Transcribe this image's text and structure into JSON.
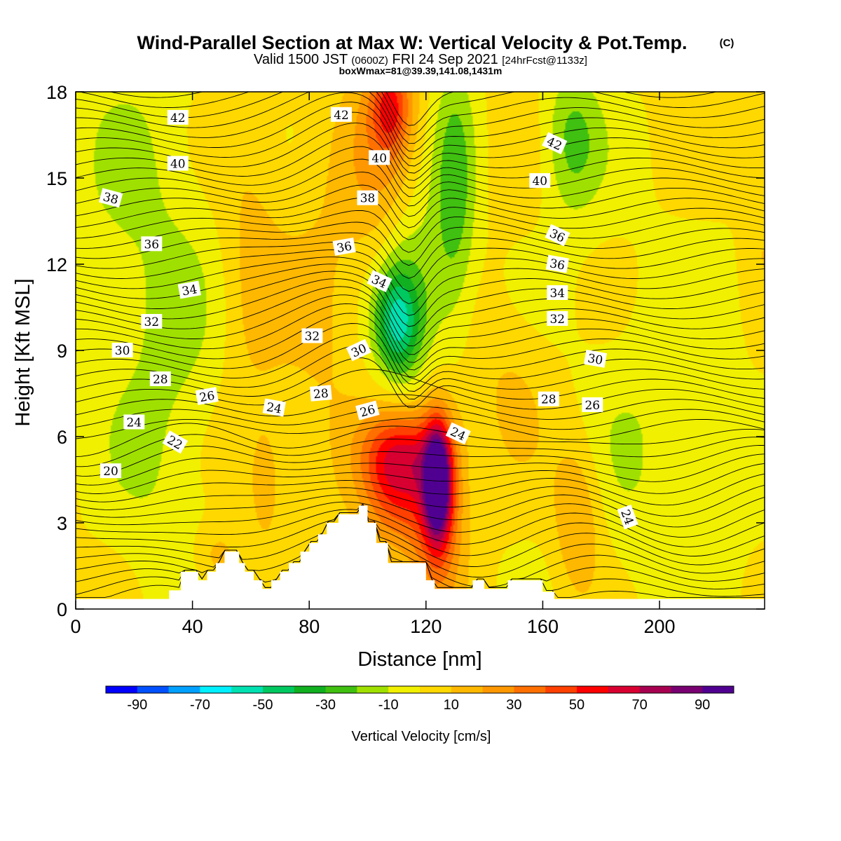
{
  "title": {
    "main": "Wind-Parallel Section at Max W: Vertical Velocity & Pot.Temp.",
    "copyright_mark": "(C)",
    "valid_prefix": "Valid 1500 JST",
    "valid_utc": "(0600Z)",
    "valid_date": "FRI 24 Sep 2021",
    "forecast": "[24hrFcst@1133z]",
    "box_info": "boxWmax=81@39.39,141.08,1431m"
  },
  "chart_data": {
    "type": "heatmap",
    "xlabel": "Distance [nm]",
    "ylabel": "Height [Kft MSL]",
    "xlim": [
      0,
      236
    ],
    "ylim": [
      0,
      18
    ],
    "x_ticks": [
      0,
      40,
      80,
      120,
      160,
      200
    ],
    "y_ticks": [
      0,
      3,
      6,
      9,
      12,
      15,
      18
    ],
    "colorbar": {
      "label": "Vertical Velocity [cm/s]",
      "bounds": [
        -100,
        100
      ],
      "tick_labels": [
        "-90",
        "-70",
        "-50",
        "-30",
        "-10",
        "10",
        "30",
        "50",
        "70",
        "90"
      ],
      "colors": [
        "#0000ff",
        "#0050ff",
        "#00a0ff",
        "#00f0ff",
        "#00e0b0",
        "#00c860",
        "#10b020",
        "#40c010",
        "#a0e000",
        "#f0f000",
        "#ffd800",
        "#ffb800",
        "#ff9800",
        "#ff7000",
        "#ff4000",
        "#ff0000",
        "#d80030",
        "#a80050",
        "#780070",
        "#500090"
      ]
    },
    "theta_contours": [
      {
        "label": "20",
        "x": 12,
        "y": 4.8,
        "angle": 0
      },
      {
        "label": "22",
        "x": 34,
        "y": 5.8,
        "angle": 30
      },
      {
        "label": "24",
        "x": 20,
        "y": 6.5,
        "angle": 0
      },
      {
        "label": "24",
        "x": 68,
        "y": 7.0,
        "angle": 10
      },
      {
        "label": "24",
        "x": 131,
        "y": 6.1,
        "angle": 25
      },
      {
        "label": "24",
        "x": 189,
        "y": 3.2,
        "angle": 70
      },
      {
        "label": "26",
        "x": 45,
        "y": 7.4,
        "angle": -10
      },
      {
        "label": "26",
        "x": 100,
        "y": 6.9,
        "angle": -15
      },
      {
        "label": "26",
        "x": 177,
        "y": 7.1,
        "angle": 0
      },
      {
        "label": "28",
        "x": 29,
        "y": 8.0,
        "angle": 0
      },
      {
        "label": "28",
        "x": 84,
        "y": 7.5,
        "angle": -5
      },
      {
        "label": "28",
        "x": 162,
        "y": 7.3,
        "angle": 0
      },
      {
        "label": "30",
        "x": 16,
        "y": 9.0,
        "angle": 0
      },
      {
        "label": "30",
        "x": 97,
        "y": 9.0,
        "angle": -25
      },
      {
        "label": "30",
        "x": 178,
        "y": 8.7,
        "angle": 10
      },
      {
        "label": "32",
        "x": 26,
        "y": 10.0,
        "angle": 0
      },
      {
        "label": "32",
        "x": 81,
        "y": 9.5,
        "angle": 0
      },
      {
        "label": "32",
        "x": 165,
        "y": 10.1,
        "angle": 0
      },
      {
        "label": "34",
        "x": 39,
        "y": 11.1,
        "angle": -10
      },
      {
        "label": "34",
        "x": 104,
        "y": 11.4,
        "angle": 25
      },
      {
        "label": "34",
        "x": 165,
        "y": 11.0,
        "angle": 0
      },
      {
        "label": "36",
        "x": 26,
        "y": 12.7,
        "angle": 0
      },
      {
        "label": "36",
        "x": 92,
        "y": 12.6,
        "angle": -10
      },
      {
        "label": "36",
        "x": 165,
        "y": 12.0,
        "angle": 10
      },
      {
        "label": "36",
        "x": 165,
        "y": 13.0,
        "angle": 25
      },
      {
        "label": "38",
        "x": 12,
        "y": 14.3,
        "angle": 15
      },
      {
        "label": "38",
        "x": 100,
        "y": 14.3,
        "angle": 0
      },
      {
        "label": "40",
        "x": 35,
        "y": 15.5,
        "angle": 0
      },
      {
        "label": "40",
        "x": 104,
        "y": 15.7,
        "angle": 0
      },
      {
        "label": "40",
        "x": 159,
        "y": 14.9,
        "angle": 0
      },
      {
        "label": "42",
        "x": 35,
        "y": 17.1,
        "angle": 0
      },
      {
        "label": "42",
        "x": 91,
        "y": 17.2,
        "angle": 0
      },
      {
        "label": "42",
        "x": 164,
        "y": 16.2,
        "angle": 25
      }
    ],
    "terrain_kft": {
      "x": [
        0,
        32,
        32,
        36,
        36,
        42,
        42,
        45,
        45,
        48,
        48,
        51,
        51,
        56,
        56,
        58,
        58,
        61,
        61,
        64,
        64,
        67,
        67,
        70,
        70,
        73,
        73,
        77,
        77,
        80,
        80,
        83,
        83,
        86,
        86,
        90,
        90,
        97,
        97,
        100,
        100,
        103,
        103,
        107,
        107,
        120,
        120,
        123,
        123,
        136,
        136,
        140,
        140,
        148,
        148,
        152,
        152,
        160,
        160,
        164,
        164,
        168,
        168,
        236
      ],
      "y": [
        0.35,
        0.35,
        0.65,
        0.65,
        1.3,
        1.3,
        1.0,
        1.0,
        1.3,
        1.3,
        1.6,
        1.6,
        2.0,
        2.0,
        1.6,
        1.6,
        1.3,
        1.3,
        1.0,
        1.0,
        0.7,
        0.7,
        1.0,
        1.0,
        1.3,
        1.3,
        1.6,
        1.6,
        2.0,
        2.0,
        2.3,
        2.3,
        2.6,
        2.6,
        3.0,
        3.0,
        3.3,
        3.3,
        3.6,
        3.6,
        3.0,
        3.0,
        2.3,
        2.3,
        1.6,
        1.6,
        1.0,
        1.0,
        0.7,
        0.7,
        1.0,
        1.0,
        0.7,
        0.7,
        1.0,
        1.0,
        1.0,
        1.0,
        0.6,
        0.6,
        0.35,
        0.35,
        0.35,
        0.35
      ]
    },
    "w_field_cms": [
      {
        "x": 124,
        "y": 4.4,
        "w": 85,
        "sx": 3,
        "sy": 1.3
      },
      {
        "x": 124,
        "y": 4.0,
        "w": 50,
        "sx": 6,
        "sy": 2.3
      },
      {
        "x": 110,
        "y": 4.4,
        "w": 45,
        "sx": 8,
        "sy": 1.6
      },
      {
        "x": 112,
        "y": 5.5,
        "w": 25,
        "sx": 10,
        "sy": 1.0
      },
      {
        "x": 108,
        "y": 17.5,
        "w": 40,
        "sx": 5,
        "sy": 1.2
      },
      {
        "x": 105,
        "y": 15.5,
        "w": 18,
        "sx": 9,
        "sy": 3.0
      },
      {
        "x": 172,
        "y": 3.2,
        "w": 22,
        "sx": 6,
        "sy": 2.0
      },
      {
        "x": 65,
        "y": 4.5,
        "w": 16,
        "sx": 4,
        "sy": 1.4
      },
      {
        "x": 48,
        "y": 1.8,
        "w": 15,
        "sx": 6,
        "sy": 0.8
      },
      {
        "x": 110,
        "y": 10.0,
        "w": -40,
        "sx": 5,
        "sy": 1.2
      },
      {
        "x": 115,
        "y": 10.8,
        "w": -26,
        "sx": 9,
        "sy": 2.6
      },
      {
        "x": 130,
        "y": 14.5,
        "w": -25,
        "sx": 5,
        "sy": 3.3
      },
      {
        "x": 170,
        "y": 16.3,
        "w": -25,
        "sx": 7,
        "sy": 1.8
      },
      {
        "x": 30,
        "y": 6.5,
        "w": -12,
        "sx": 14,
        "sy": 5.0
      },
      {
        "x": 200,
        "y": 5.8,
        "w": -10,
        "sx": 25,
        "sy": 5.0
      },
      {
        "x": 20,
        "y": 14.5,
        "w": -10,
        "sx": 20,
        "sy": 4.5
      },
      {
        "x": 60,
        "y": 12.5,
        "w": 12,
        "sx": 8,
        "sy": 4.5
      },
      {
        "x": 85,
        "y": 10.5,
        "w": 10,
        "sx": 10,
        "sy": 4.0
      },
      {
        "x": 150,
        "y": 7.8,
        "w": 10,
        "sx": 10,
        "sy": 2.0
      },
      {
        "x": 235,
        "y": 15.0,
        "w": 10,
        "sx": 4,
        "sy": 3.0
      }
    ]
  }
}
